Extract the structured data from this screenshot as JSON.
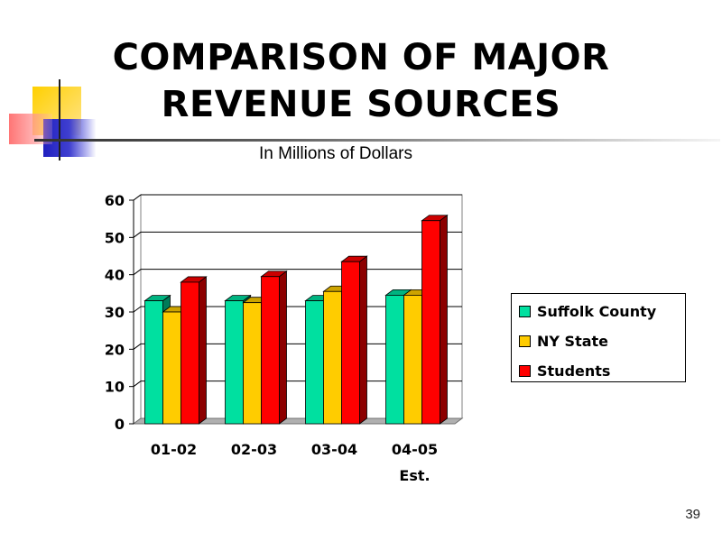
{
  "slide": {
    "title_line1": "COMPARISON OF MAJOR",
    "title_line2": "REVENUE SOURCES",
    "page_number": "39"
  },
  "chart_data": {
    "type": "bar",
    "title": "In Millions of Dollars",
    "categories": [
      "01-02",
      "02-03",
      "03-04",
      "04-05"
    ],
    "category_sublabels": [
      "",
      "",
      "",
      "Est."
    ],
    "series": [
      {
        "name": "Suffolk County",
        "values": [
          33,
          33,
          33,
          34.5
        ],
        "color": "#00e0a0"
      },
      {
        "name": "NY State",
        "values": [
          30,
          32.5,
          35.5,
          34.5
        ],
        "color": "#ffcc00"
      },
      {
        "name": "Students",
        "values": [
          38,
          39.5,
          43.5,
          54.5
        ],
        "color": "#ff0000"
      }
    ],
    "ylim": [
      0,
      60
    ],
    "yticks": [
      0,
      10,
      20,
      30,
      40,
      50,
      60
    ],
    "grid": true,
    "legend": "right",
    "style": "3d-clustered-column"
  }
}
